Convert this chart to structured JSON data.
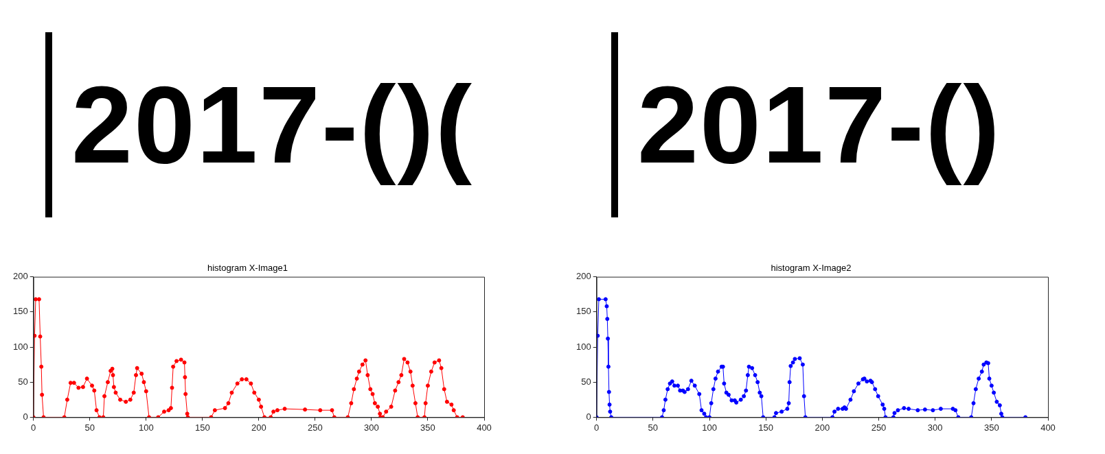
{
  "chart_data": [
    {
      "type": "other",
      "annotations": [
        "2017-()("
      ]
    },
    {
      "type": "other",
      "annotations": [
        "2017-()"
      ]
    },
    {
      "type": "line",
      "title": "histogram X-Image1",
      "xlim": [
        0,
        400
      ],
      "ylim": [
        0,
        200
      ],
      "xticks": [
        0,
        50,
        100,
        150,
        200,
        250,
        300,
        350,
        400
      ],
      "yticks": [
        0,
        50,
        100,
        150,
        200
      ],
      "marker": "circle",
      "series": [
        {
          "color": "#ff0000",
          "x": [
            0,
            1,
            2,
            5,
            6,
            7,
            7.6,
            9,
            27.4,
            30,
            33,
            36,
            40,
            44,
            47.5,
            52,
            54,
            56,
            58.6,
            62,
            63,
            66,
            68.5,
            70,
            70.6,
            71.4,
            73,
            77,
            82,
            86,
            89,
            91,
            92,
            96,
            98,
            100,
            102.6,
            110.7,
            116,
            120,
            122,
            123,
            124,
            127,
            131,
            134,
            134.5,
            135,
            136.5,
            137,
            157.7,
            161,
            170,
            173,
            176,
            181,
            185,
            189,
            193,
            196,
            200,
            202,
            205,
            210.6,
            213,
            216.5,
            223,
            241,
            254.5,
            265,
            267,
            279,
            282,
            284.4,
            287,
            289,
            292,
            294.7,
            296.6,
            299,
            301,
            303,
            305.6,
            307.5,
            308,
            310,
            313,
            317.5,
            321,
            324,
            326.5,
            329,
            332,
            334.6,
            336.5,
            339,
            341,
            347,
            348,
            350,
            353,
            356,
            360,
            362,
            364.5,
            367,
            371,
            373,
            376,
            381
          ],
          "values": [
            0,
            116,
            168,
            168,
            115,
            72,
            32,
            0,
            0,
            25,
            49,
            49,
            42,
            43,
            55,
            45,
            38,
            10,
            0,
            0,
            30,
            50,
            66,
            69,
            60,
            43,
            35,
            25,
            22,
            25,
            35,
            60,
            70,
            62,
            50,
            37,
            0,
            0,
            8,
            10,
            13,
            42,
            72,
            80,
            82,
            78,
            57,
            33,
            5,
            0,
            0,
            10,
            13,
            20,
            35,
            48,
            54,
            54,
            48,
            35,
            25,
            15,
            0,
            0,
            8,
            10,
            12,
            11,
            10,
            10,
            0,
            0,
            20,
            40,
            55,
            65,
            75,
            81,
            60,
            40,
            33,
            20,
            15,
            5,
            0,
            0,
            8,
            15,
            38,
            50,
            60,
            83,
            78,
            65,
            45,
            20,
            0,
            0,
            20,
            45,
            65,
            78,
            81,
            70,
            40,
            22,
            18,
            10,
            0,
            0
          ]
        }
      ]
    },
    {
      "type": "line",
      "title": "histogram X-Image2",
      "xlim": [
        0,
        400
      ],
      "ylim": [
        0,
        200
      ],
      "xticks": [
        0,
        50,
        100,
        150,
        200,
        250,
        300,
        350,
        400
      ],
      "yticks": [
        0,
        50,
        100,
        150,
        200
      ],
      "marker": "circle",
      "series": [
        {
          "color": "#0000ff",
          "x": [
            0,
            1,
            2,
            8,
            9,
            9.5,
            10,
            10.5,
            11,
            11.5,
            12,
            13,
            58,
            59.5,
            61,
            63,
            65,
            67,
            69,
            72,
            74,
            76.5,
            78,
            81,
            84,
            87,
            91,
            93,
            95.4,
            97,
            100,
            101.6,
            103.5,
            105.4,
            107.6,
            110.8,
            112,
            113,
            115,
            117,
            119.7,
            122.4,
            123.8,
            127.8,
            130.5,
            132.4,
            134,
            135,
            137.8,
            140.5,
            142.7,
            144.6,
            146,
            147.6,
            157.6,
            159,
            164,
            169,
            170.3,
            171,
            172,
            174,
            175.7,
            180,
            182.7,
            183.8,
            185,
            209,
            210.8,
            214,
            218,
            219.7,
            221,
            225,
            228,
            232,
            236,
            237.3,
            239.5,
            242.7,
            244,
            246.8,
            249.5,
            253.5,
            254.9,
            256,
            263,
            264,
            267,
            272.4,
            276.5,
            284.6,
            291,
            298,
            305,
            315.7,
            318,
            320.5,
            332,
            334,
            336,
            338.6,
            341.4,
            343,
            345.4,
            347,
            348,
            350,
            352,
            354.6,
            357.3,
            358.6,
            359.5,
            380
          ],
          "values": [
            0,
            116,
            168,
            168,
            158,
            140,
            112,
            72,
            36,
            18,
            8,
            0,
            0,
            10,
            25,
            40,
            48,
            51,
            45,
            45,
            38,
            38,
            36,
            40,
            52,
            45,
            33,
            10,
            5,
            0,
            0,
            20,
            40,
            55,
            65,
            72,
            72,
            48,
            35,
            32,
            24,
            24,
            21,
            25,
            30,
            38,
            60,
            72,
            70,
            60,
            50,
            35,
            30,
            0,
            0,
            6,
            8,
            12,
            20,
            50,
            73,
            78,
            83,
            84,
            75,
            30,
            0,
            0,
            8,
            12,
            12,
            14,
            12,
            25,
            37,
            48,
            54,
            55,
            51,
            52,
            50,
            40,
            30,
            18,
            12,
            0,
            0,
            6,
            10,
            13,
            12,
            10,
            11,
            10,
            12,
            12,
            10,
            0,
            0,
            20,
            40,
            55,
            65,
            75,
            78,
            77,
            55,
            45,
            35,
            22,
            17,
            5,
            0,
            0
          ]
        }
      ]
    }
  ]
}
